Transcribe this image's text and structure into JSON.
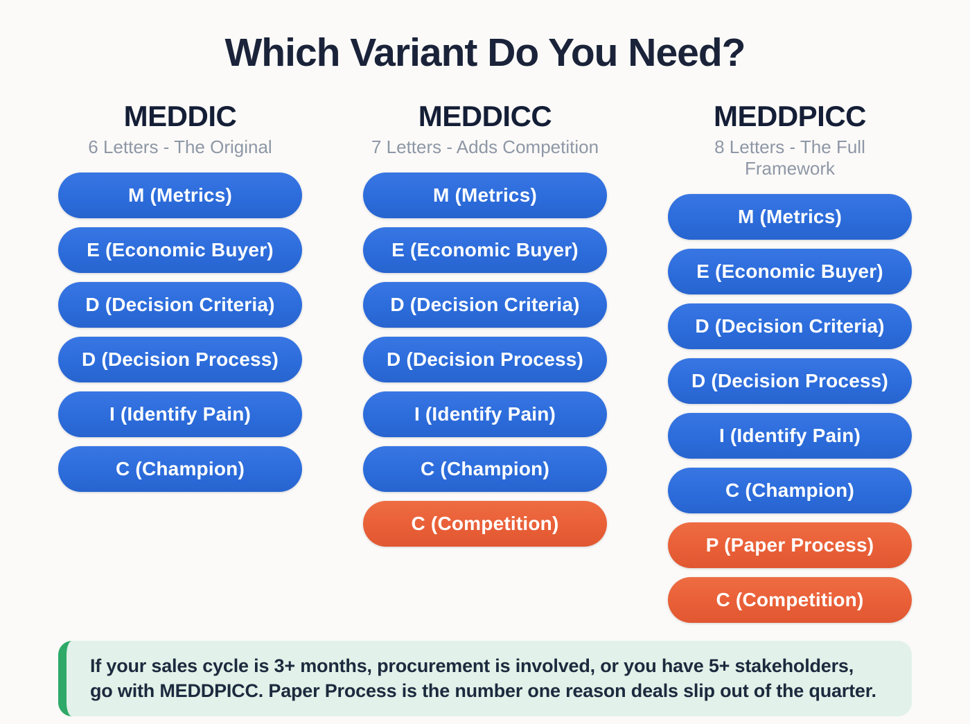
{
  "title": "Which Variant Do You Need?",
  "colors": {
    "page_bg": "#FBFAF8",
    "title_text": "#1A2339",
    "header_text": "#141E36",
    "subtitle_text": "#8E97A6",
    "pill_blue": "#2C6CDB",
    "pill_orange": "#E95F37",
    "pill_text": "#FFFFFF",
    "note_bg": "#E2F1E9",
    "note_accent": "#2FA968",
    "note_text": "#1C2A3E"
  },
  "columns": [
    {
      "name": "MEDDIC",
      "subtitle": "6 Letters - The Original",
      "pills": [
        {
          "label": "M (Metrics)",
          "color": "blue"
        },
        {
          "label": "E (Economic Buyer)",
          "color": "blue"
        },
        {
          "label": "D (Decision Criteria)",
          "color": "blue"
        },
        {
          "label": "D (Decision Process)",
          "color": "blue"
        },
        {
          "label": "I (Identify Pain)",
          "color": "blue"
        },
        {
          "label": "C (Champion)",
          "color": "blue"
        }
      ]
    },
    {
      "name": "MEDDICC",
      "subtitle": "7 Letters - Adds Competition",
      "pills": [
        {
          "label": "M (Metrics)",
          "color": "blue"
        },
        {
          "label": "E (Economic Buyer)",
          "color": "blue"
        },
        {
          "label": "D (Decision Criteria)",
          "color": "blue"
        },
        {
          "label": "D (Decision Process)",
          "color": "blue"
        },
        {
          "label": "I (Identify Pain)",
          "color": "blue"
        },
        {
          "label": "C (Champion)",
          "color": "blue"
        },
        {
          "label": "C (Competition)",
          "color": "orange"
        }
      ]
    },
    {
      "name": "MEDDPICC",
      "subtitle": "8 Letters - The Full Framework",
      "pills": [
        {
          "label": "M (Metrics)",
          "color": "blue"
        },
        {
          "label": "E (Economic Buyer)",
          "color": "blue"
        },
        {
          "label": "D (Decision Criteria)",
          "color": "blue"
        },
        {
          "label": "D (Decision Process)",
          "color": "blue"
        },
        {
          "label": "I (Identify Pain)",
          "color": "blue"
        },
        {
          "label": "C (Champion)",
          "color": "blue"
        },
        {
          "label": "P (Paper Process)",
          "color": "orange"
        },
        {
          "label": "C (Competition)",
          "color": "orange"
        }
      ]
    }
  ],
  "note": {
    "lines": [
      "If your sales cycle is 3+ months, procurement is involved, or you have 5+ stakeholders,",
      "go with MEDDPICC. Paper Process is the number one reason deals slip out of the quarter."
    ]
  }
}
